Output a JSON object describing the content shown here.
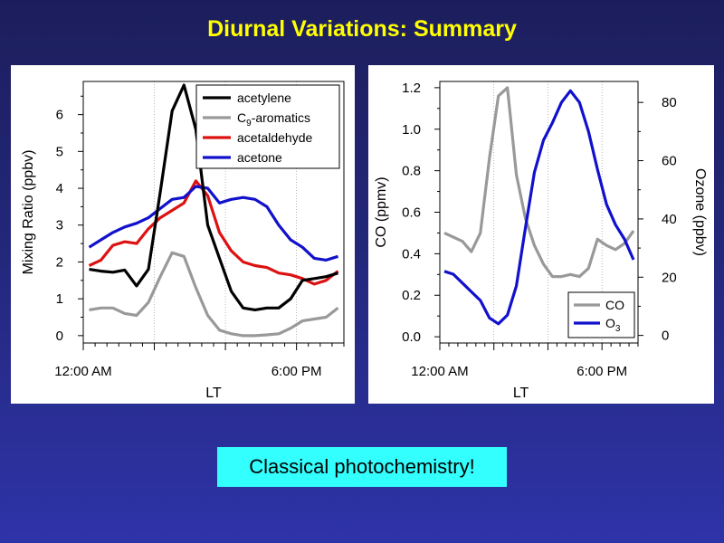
{
  "slide": {
    "title": "Diurnal Variations: Summary",
    "callout": "Classical photochemistry!"
  },
  "chart_data": [
    {
      "type": "line",
      "xlabel": "LT",
      "ylabel": "Mixing Ratio (ppbv)",
      "xlim": [
        0,
        22
      ],
      "ylim": [
        -0.2,
        6.9
      ],
      "yticks": [
        0,
        1,
        2,
        3,
        4,
        5,
        6
      ],
      "xtick_labels": [
        {
          "x": 0,
          "label": "12:00 AM"
        },
        {
          "x": 18,
          "label": "6:00 PM"
        }
      ],
      "legend_position": "top-right",
      "x": [
        0.5,
        1.5,
        2.5,
        3.5,
        4.5,
        5.5,
        6.5,
        7.5,
        8.5,
        9.5,
        10.5,
        11.5,
        12.5,
        13.5,
        14.5,
        15.5,
        16.5,
        17.5,
        18.5,
        19.5,
        20.5,
        21.5
      ],
      "series": [
        {
          "name": "acetylene",
          "color": "#000000",
          "values": [
            1.8,
            1.75,
            1.72,
            1.78,
            1.35,
            1.8,
            3.9,
            6.1,
            6.8,
            5.6,
            3.0,
            2.1,
            1.2,
            0.75,
            0.7,
            0.75,
            0.75,
            1.0,
            1.5,
            1.55,
            1.6,
            1.7
          ]
        },
        {
          "name": "C9-aromatics",
          "name_main": "C",
          "name_sub": "9",
          "name_rest": "-aromatics",
          "color": "#999999",
          "values": [
            0.7,
            0.75,
            0.75,
            0.6,
            0.55,
            0.9,
            1.6,
            2.25,
            2.15,
            1.3,
            0.55,
            0.15,
            0.05,
            0.0,
            0.0,
            0.02,
            0.05,
            0.2,
            0.4,
            0.45,
            0.5,
            0.75
          ]
        },
        {
          "name": "acetaldehyde",
          "color": "#dd1111",
          "values": [
            1.9,
            2.05,
            2.45,
            2.55,
            2.5,
            2.9,
            3.2,
            3.4,
            3.6,
            4.2,
            3.8,
            2.8,
            2.3,
            2.0,
            1.9,
            1.85,
            1.7,
            1.65,
            1.55,
            1.4,
            1.5,
            1.75
          ]
        },
        {
          "name": "acetone",
          "color": "#1111cc",
          "values": [
            2.4,
            2.6,
            2.8,
            2.95,
            3.05,
            3.2,
            3.45,
            3.7,
            3.75,
            4.05,
            4.0,
            3.6,
            3.7,
            3.75,
            3.7,
            3.5,
            3.0,
            2.6,
            2.4,
            2.1,
            2.05,
            2.15
          ]
        }
      ]
    },
    {
      "type": "line",
      "xlabel": "LT",
      "ylabel": "CO (ppmv)",
      "y2label": "Ozone (ppbv)",
      "xlim": [
        0,
        22
      ],
      "ylim": [
        -0.03,
        1.23
      ],
      "y2lim": [
        -2.6,
        87.2
      ],
      "yticks": [
        0.0,
        0.2,
        0.4,
        0.6,
        0.8,
        1.0,
        1.2
      ],
      "y2ticks": [
        0,
        20,
        40,
        60,
        80
      ],
      "xtick_labels": [
        {
          "x": 0,
          "label": "12:00 AM"
        },
        {
          "x": 18,
          "label": "6:00 PM"
        }
      ],
      "legend_position": "bottom-right",
      "x": [
        0.5,
        1.5,
        2.5,
        3.5,
        4.5,
        5.5,
        6.5,
        7.5,
        8.5,
        9.5,
        10.5,
        11.5,
        12.5,
        13.5,
        14.5,
        15.5,
        16.5,
        17.5,
        18.5,
        19.5,
        20.5,
        21.5
      ],
      "series": [
        {
          "name": "CO",
          "axis": "left",
          "color": "#999999",
          "values": [
            0.5,
            0.48,
            0.46,
            0.41,
            0.5,
            0.86,
            1.16,
            1.2,
            0.78,
            0.57,
            0.44,
            0.35,
            0.29,
            0.29,
            0.3,
            0.29,
            0.33,
            0.47,
            0.44,
            0.42,
            0.45,
            0.51
          ]
        },
        {
          "name": "O3",
          "name_main": "O",
          "name_sub": "3",
          "axis": "right",
          "color": "#1111cc",
          "values": [
            22,
            21,
            18,
            15,
            12,
            6,
            4,
            7,
            17,
            37,
            56,
            67,
            73,
            80,
            84,
            80,
            70,
            57,
            45,
            38,
            33,
            26
          ]
        }
      ]
    }
  ]
}
